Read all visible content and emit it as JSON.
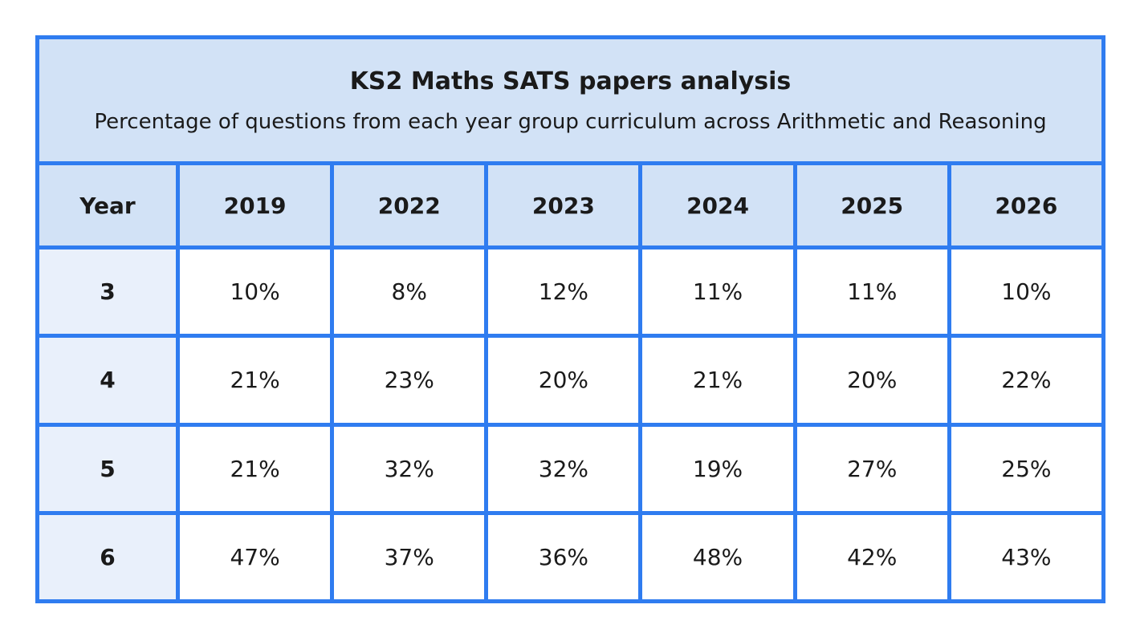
{
  "chart_data": {
    "type": "table",
    "title": "KS2 Maths SATS papers analysis",
    "subtitle": "Percentage of questions from each year group curriculum across Arithmetic and Reasoning",
    "row_header_label": "Year",
    "columns": [
      "2019",
      "2022",
      "2023",
      "2024",
      "2025",
      "2026"
    ],
    "rows": [
      {
        "year": "3",
        "values": [
          "10%",
          "8%",
          "12%",
          "11%",
          "11%",
          "10%"
        ]
      },
      {
        "year": "4",
        "values": [
          "21%",
          "23%",
          "20%",
          "21%",
          "20%",
          "22%"
        ]
      },
      {
        "year": "5",
        "values": [
          "21%",
          "32%",
          "32%",
          "19%",
          "27%",
          "25%"
        ]
      },
      {
        "year": "6",
        "values": [
          "47%",
          "37%",
          "36%",
          "48%",
          "42%",
          "43%"
        ]
      }
    ],
    "colors": {
      "border": "#2f7cf0",
      "header_fill": "#d2e2f6",
      "year_column_fill": "#e9f0fb",
      "cell_fill": "#ffffff"
    }
  }
}
